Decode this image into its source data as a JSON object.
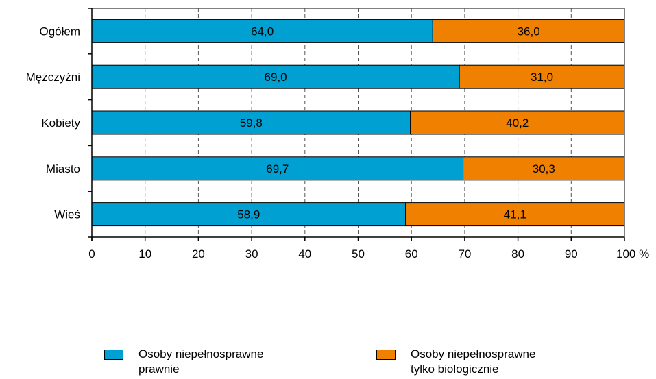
{
  "chart_data": {
    "type": "bar",
    "orientation": "horizontal",
    "stacked": true,
    "categories": [
      "Ogółem",
      "Mężczyźni",
      "Kobiety",
      "Miasto",
      "Wieś"
    ],
    "series": [
      {
        "name": "Osoby niepełnosprawne prawnie",
        "values": [
          64.0,
          69.0,
          59.8,
          69.7,
          58.9
        ],
        "labels": [
          "64,0",
          "69,0",
          "59,8",
          "69,7",
          "58,9"
        ],
        "color": "#00a0d2"
      },
      {
        "name": "Osoby niepełnosprawne tylko biologicznie",
        "values": [
          36.0,
          31.0,
          40.2,
          30.3,
          41.1
        ],
        "labels": [
          "36,0",
          "31,0",
          "40,2",
          "30,3",
          "41,1"
        ],
        "color": "#f08000"
      }
    ],
    "xlim": [
      0,
      100
    ],
    "xticks": [
      0,
      10,
      20,
      30,
      40,
      50,
      60,
      70,
      80,
      90,
      100
    ],
    "xtick_labels": [
      "0",
      "10",
      "20",
      "30",
      "40",
      "50",
      "60",
      "70",
      "80",
      "90",
      "100 %"
    ],
    "grid": "vertical-dashed",
    "legend_position": "bottom"
  },
  "legend": {
    "items": [
      {
        "line1": "Osoby niepełnosprawne",
        "line2": "prawnie",
        "color": "#00a0d2"
      },
      {
        "line1": "Osoby niepełnosprawne",
        "line2": "tylko biologicznie",
        "color": "#f08000"
      }
    ]
  }
}
